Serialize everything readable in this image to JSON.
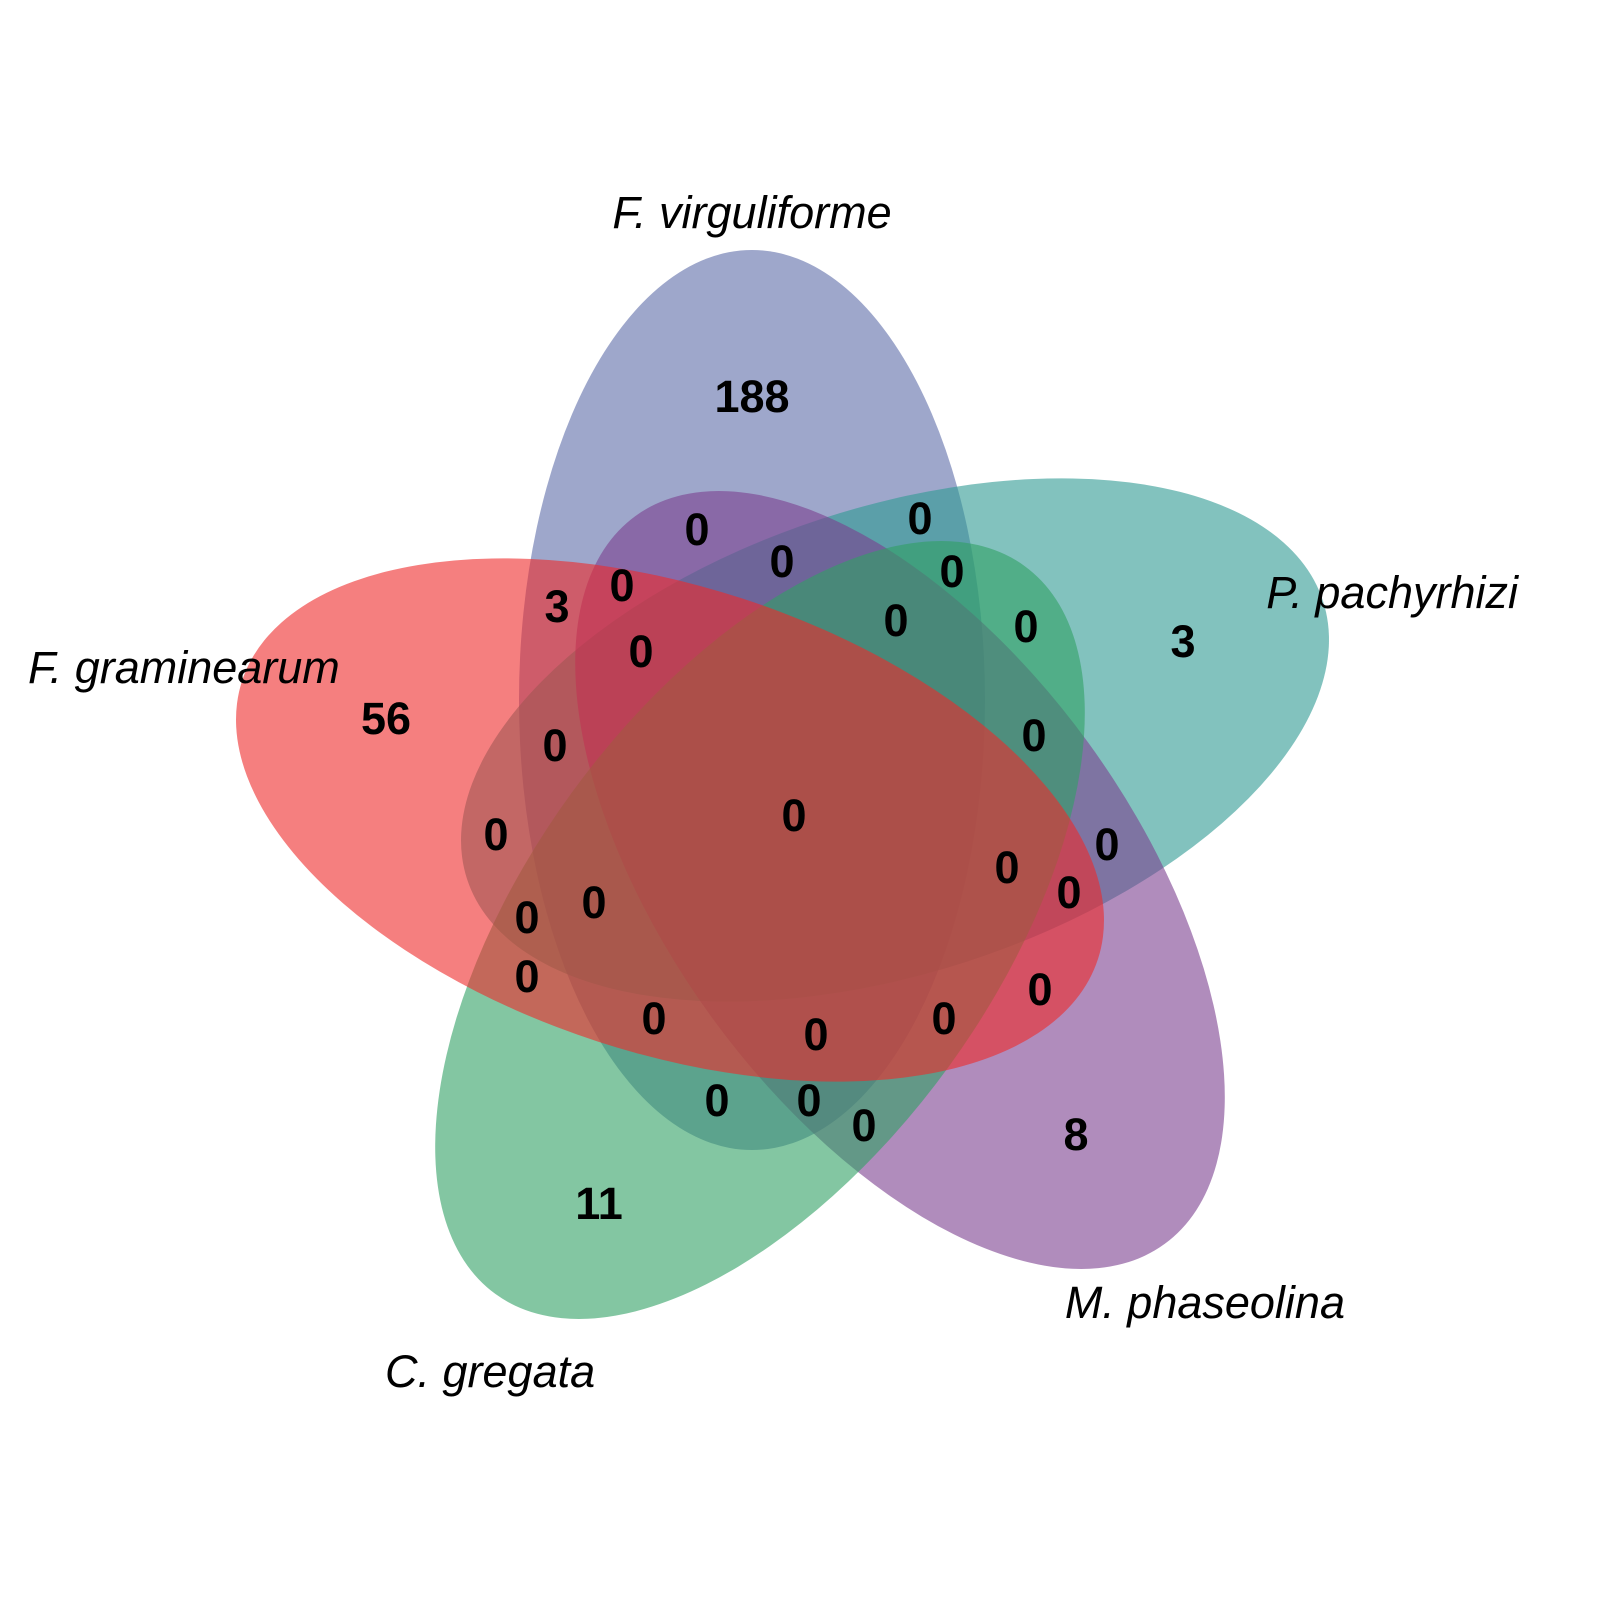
{
  "sets": [
    {
      "label": "F. virguliforme",
      "color": "#5E6CA8"
    },
    {
      "label": "P. pachyrhizi",
      "color": "#2E9A93"
    },
    {
      "label": "M. phaseolina",
      "color": "#7B3F8F"
    },
    {
      "label": "C. gregata",
      "color": "#31A064"
    },
    {
      "label": "F. graminearum",
      "color": "#EE2A2A"
    }
  ],
  "region_counts": [
    "188",
    "3",
    "8",
    "11",
    "56",
    "3",
    "0",
    "0",
    "0",
    "0",
    "0",
    "0",
    "0",
    "0",
    "0",
    "0",
    "0",
    "0",
    "0",
    "0",
    "0",
    "0",
    "0",
    "0",
    "0",
    "0",
    "0",
    "0",
    "0",
    "0",
    "0",
    "0",
    "0",
    "0",
    "0",
    "0",
    "0",
    "0",
    "0",
    "0",
    "0",
    "0"
  ]
}
